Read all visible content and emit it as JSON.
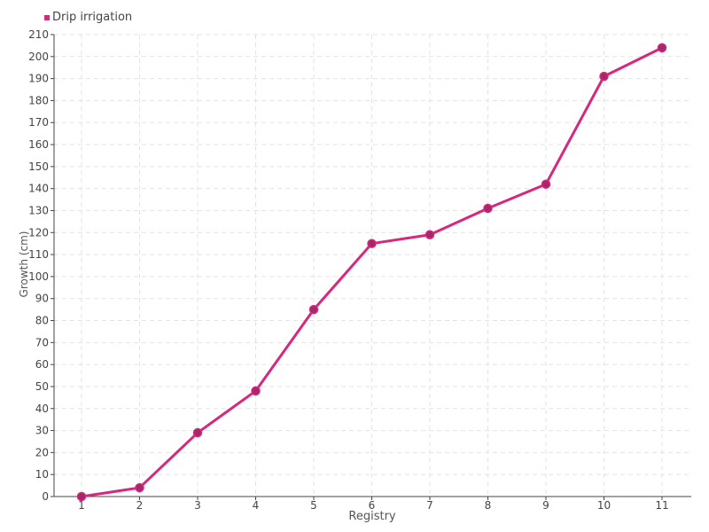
{
  "chart_data": {
    "type": "line",
    "title": "",
    "xlabel": "Registry",
    "ylabel": "Growth (cm)",
    "categories": [
      "1",
      "2",
      "3",
      "4",
      "5",
      "6",
      "7",
      "8",
      "9",
      "10",
      "11"
    ],
    "series": [
      {
        "name": "Drip irrigation",
        "values": [
          0,
          4,
          29,
          48,
          85,
          115,
          119,
          131,
          142,
          191,
          204
        ],
        "color": "#d6287e",
        "marker_color": "#a8266a"
      }
    ],
    "ylim": [
      0,
      210
    ],
    "ytick_step": 10,
    "grid": true,
    "legend_position": "top-left"
  }
}
